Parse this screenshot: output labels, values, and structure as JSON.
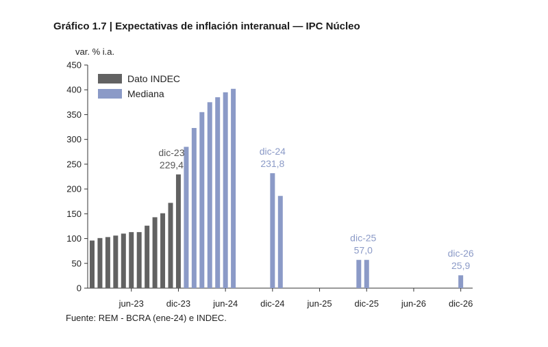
{
  "title": "Gráfico 1.7 | Expectativas de inflación interanual — IPC Núcleo",
  "source": "Fuente: REM - BCRA (ene-24) e INDEC.",
  "chart_data": {
    "type": "bar",
    "ylabel": "var. % i.a.",
    "ylim": [
      0,
      450
    ],
    "yticks": [
      0,
      50,
      100,
      150,
      200,
      250,
      300,
      350,
      400,
      450
    ],
    "grid": false,
    "legend_position": "top-left",
    "colors": {
      "Dato INDEC": "#626262",
      "Mediana": "#8b9ac7"
    },
    "x_tick_labels": [
      "jun-23",
      "dic-23",
      "jun-24",
      "dic-24",
      "jun-25",
      "dic-25",
      "jun-26",
      "dic-26"
    ],
    "series": [
      {
        "name": "Dato INDEC",
        "x": [
          "ene-23",
          "feb-23",
          "mar-23",
          "abr-23",
          "may-23",
          "jun-23",
          "jul-23",
          "ago-23",
          "sep-23",
          "oct-23",
          "nov-23",
          "dic-23"
        ],
        "values": [
          96,
          101,
          103,
          106,
          110,
          113,
          113,
          126,
          143,
          151,
          172,
          229.4
        ]
      },
      {
        "name": "Mediana",
        "x": [
          "ene-24",
          "feb-24",
          "mar-24",
          "abr-24",
          "may-24",
          "jun-24",
          "jul-24",
          "dic-24",
          "ene-25",
          "nov-25",
          "dic-25",
          "dic-26"
        ],
        "values": [
          285,
          323,
          355,
          375,
          385,
          395,
          402,
          231.8,
          186,
          57,
          57.0,
          25.9
        ]
      }
    ],
    "annotations": [
      {
        "x": "dic-23",
        "label": "dic-23",
        "value_label": "229,4",
        "color": "#555555"
      },
      {
        "x": "dic-24",
        "label": "dic-24",
        "value_label": "231,8",
        "color": "#8b9ac7"
      },
      {
        "x": "dic-25",
        "label": "dic-25",
        "value_label": "57,0",
        "color": "#8b9ac7"
      },
      {
        "x": "dic-26",
        "label": "dic-26",
        "value_label": "25,9",
        "color": "#8b9ac7"
      }
    ]
  }
}
